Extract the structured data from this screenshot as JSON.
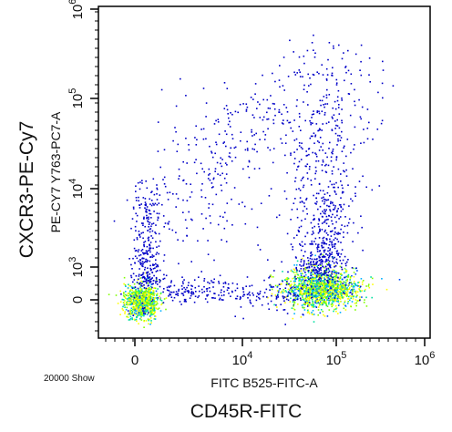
{
  "chart_data": {
    "type": "scatter",
    "style": "pseudocolor density dot plot (flow cytometry)",
    "xlabel_instrument": "FITC B525-FITC-A",
    "ylabel_instrument": "PE-CY7 Y763-PC7-A",
    "xlabel_outer": "CD45R-FITC",
    "ylabel_outer": "CXCR3-PE-Cy7",
    "event_count_label": "20000 Show",
    "x_scale": "biexponential",
    "y_scale": "biexponential",
    "x_ticks": [
      {
        "base": "0",
        "exp": ""
      },
      {
        "base": "10",
        "exp": "4"
      },
      {
        "base": "10",
        "exp": "5"
      },
      {
        "base": "10",
        "exp": "6"
      }
    ],
    "y_ticks": [
      {
        "base": "0",
        "exp": ""
      },
      {
        "base": "10",
        "exp": "3"
      },
      {
        "base": "10",
        "exp": "4"
      },
      {
        "base": "10",
        "exp": "5"
      },
      {
        "base": "10",
        "exp": "6"
      }
    ],
    "populations": [
      {
        "name": "",
        "x_center": 0,
        "y_center": 0,
        "density": "high"
      },
      {
        "name": "",
        "x_center": 70000,
        "y_center": 300,
        "density": "high"
      },
      {
        "name": "",
        "x_center": 60000,
        "y_center": 5000,
        "density": "low",
        "note": "vertical streak upward from right cluster"
      },
      {
        "name": "",
        "x_center": 0,
        "y_center": 1500,
        "density": "low",
        "note": "vertical streak upward from left cluster"
      }
    ],
    "density_colors": [
      "#0000c8",
      "#0050ff",
      "#00b0ff",
      "#00e0a0",
      "#7fff00",
      "#ffff00"
    ],
    "grid": false,
    "legend": "none"
  }
}
